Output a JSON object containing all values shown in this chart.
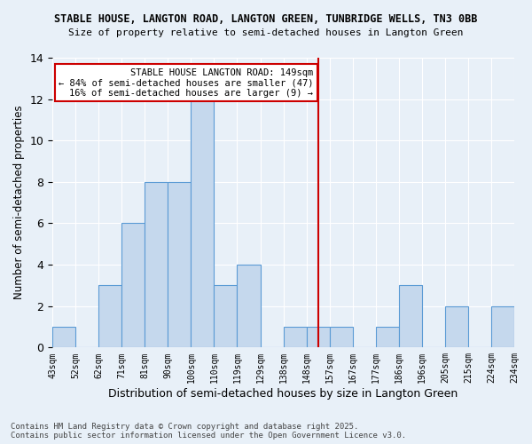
{
  "title1": "STABLE HOUSE, LANGTON ROAD, LANGTON GREEN, TUNBRIDGE WELLS, TN3 0BB",
  "title2": "Size of property relative to semi-detached houses in Langton Green",
  "xlabel": "Distribution of semi-detached houses by size in Langton Green",
  "ylabel": "Number of semi-detached properties",
  "footer1": "Contains HM Land Registry data © Crown copyright and database right 2025.",
  "footer2": "Contains public sector information licensed under the Open Government Licence v3.0.",
  "annotation_line1": "STABLE HOUSE LANGTON ROAD: 149sqm",
  "annotation_line2": "← 84% of semi-detached houses are smaller (47)",
  "annotation_line3": "16% of semi-detached houses are larger (9) →",
  "bin_labels": [
    "43sqm",
    "52sqm",
    "62sqm",
    "71sqm",
    "81sqm",
    "90sqm",
    "100sqm",
    "110sqm",
    "119sqm",
    "129sqm",
    "138sqm",
    "148sqm",
    "157sqm",
    "167sqm",
    "177sqm",
    "186sqm",
    "196sqm",
    "205sqm",
    "215sqm",
    "224sqm",
    "234sqm"
  ],
  "bar_values": [
    1,
    0,
    3,
    6,
    8,
    8,
    12,
    3,
    4,
    0,
    1,
    1,
    1,
    0,
    1,
    3,
    0,
    2,
    0,
    2
  ],
  "bar_color": "#c5d8ed",
  "bar_edge_color": "#5b9bd5",
  "property_line_x": 11.5,
  "property_line_color": "#cc0000",
  "annotation_box_color": "#cc0000",
  "background_color": "#e8f0f8",
  "ylim": [
    0,
    14
  ],
  "yticks": [
    0,
    2,
    4,
    6,
    8,
    10,
    12,
    14
  ]
}
